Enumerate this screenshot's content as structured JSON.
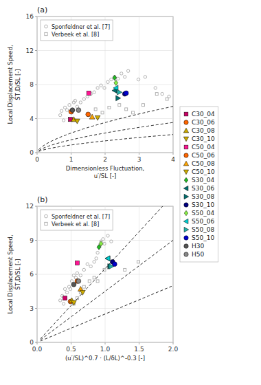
{
  "chart_data": [
    {
      "type": "scatter",
      "title": "(a)",
      "xlabel": [
        "Dimensionless Fluctuation,",
        "u′/SL [-]"
      ],
      "ylabel": [
        "Local Displacement Speed,",
        "S̄T,D/SL [-]"
      ],
      "xlim": [
        0,
        4
      ],
      "ylim": [
        0,
        16
      ],
      "xticks": [
        0,
        1,
        2,
        3,
        4
      ],
      "yticks": [
        0,
        4,
        8,
        12,
        16
      ],
      "grid": true,
      "legend": "upper left",
      "series": [
        {
          "name": "Sponfeldner et al.  [7]",
          "color": "#aaaaaa",
          "marker": "open-circle",
          "x": [
            0.68,
            0.72,
            0.78,
            0.82,
            0.88,
            0.95,
            1.02,
            1.08,
            1.12,
            1.18,
            1.28,
            1.38,
            1.48,
            1.58,
            1.68,
            1.78,
            1.88,
            1.98,
            2.08,
            2.18,
            2.28,
            2.38,
            2.48,
            2.58,
            2.68,
            2.98,
            3.18,
            3.48,
            3.68,
            3.88
          ],
          "values": [
            4.4,
            4.9,
            3.8,
            5.3,
            5.0,
            5.6,
            4.7,
            5.9,
            6.1,
            5.4,
            5.9,
            6.3,
            6.6,
            6.9,
            7.1,
            7.6,
            7.9,
            7.6,
            8.3,
            8.6,
            8.9,
            8.7,
            9.3,
            8.9,
            9.6,
            8.6,
            8.9,
            7.6,
            6.9,
            6.6
          ]
        },
        {
          "name": "Verbeek et al.  [8]",
          "color": "#aaaaaa",
          "marker": "open-square",
          "x": [
            1.52,
            1.72,
            1.92,
            2.12,
            2.42,
            2.62,
            2.82,
            3.12,
            3.52,
            3.82
          ],
          "values": [
            4.4,
            5.1,
            4.7,
            5.3,
            5.6,
            5.1,
            4.7,
            5.6,
            6.9,
            6.3
          ]
        },
        {
          "type": "line",
          "line_style": "dashed",
          "color": "#000000",
          "coefficient": 2.3,
          "exponent": 0.62,
          "x_range": [
            0.05,
            4.0
          ]
        },
        {
          "type": "line",
          "line_style": "dashed",
          "color": "#000000",
          "coefficient": 1.5,
          "exponent": 0.62,
          "x_range": [
            0.05,
            4.0
          ]
        },
        {
          "type": "line",
          "line_style": "dashed",
          "color": "#000000",
          "coefficient": 0.9,
          "exponent": 0.62,
          "x_range": [
            0.05,
            4.0
          ]
        },
        {
          "name": "C30_04",
          "color": "#CC0066",
          "marker": "square",
          "x": [
            0.98
          ],
          "values": [
            3.9
          ]
        },
        {
          "name": "C30_06",
          "color": "#FF6600",
          "marker": "circle",
          "x": [
            1.0
          ],
          "values": [
            4.8
          ]
        },
        {
          "name": "C30_08",
          "color": "#CCAA00",
          "marker": "triangle-up",
          "x": [
            1.08
          ],
          "values": [
            3.9
          ]
        },
        {
          "name": "C30_10",
          "color": "#CCAA00",
          "marker": "triangle-down",
          "x": [
            1.18
          ],
          "values": [
            3.7
          ]
        },
        {
          "name": "C50_04",
          "color": "#FF1493",
          "marker": "square",
          "x": [
            1.52
          ],
          "values": [
            7.0
          ]
        },
        {
          "name": "C50_06",
          "color": "#FF6600",
          "marker": "circle",
          "x": [
            1.5
          ],
          "values": [
            4.5
          ]
        },
        {
          "name": "C50_08",
          "color": "#FFA500",
          "marker": "triangle-up",
          "x": [
            1.62
          ],
          "values": [
            4.2
          ]
        },
        {
          "name": "C50_10",
          "color": "#CCAA00",
          "marker": "triangle-down",
          "x": [
            1.78
          ],
          "values": [
            4.1
          ]
        },
        {
          "name": "S30_04",
          "color": "#22BB22",
          "marker": "diamond",
          "x": [
            2.28
          ],
          "values": [
            8.8
          ]
        },
        {
          "name": "S30_06",
          "color": "#007070",
          "marker": "triangle-left",
          "x": [
            2.28
          ],
          "values": [
            7.3
          ]
        },
        {
          "name": "S30_08",
          "color": "#007070",
          "marker": "triangle-right",
          "x": [
            2.38
          ],
          "values": [
            6.4
          ]
        },
        {
          "name": "S30_10",
          "color": "#000080",
          "marker": "circle",
          "x": [
            2.58
          ],
          "values": [
            6.9
          ]
        },
        {
          "name": "S50_04",
          "color": "#88EE44",
          "marker": "diamond",
          "x": [
            2.32
          ],
          "values": [
            8.2
          ]
        },
        {
          "name": "S50_06",
          "color": "#00CED1",
          "marker": "triangle-left",
          "x": [
            2.32
          ],
          "values": [
            7.6
          ]
        },
        {
          "name": "S50_08",
          "color": "#20B2AA",
          "marker": "triangle-right",
          "x": [
            2.42
          ],
          "values": [
            7.1
          ]
        },
        {
          "name": "S50_10",
          "color": "#0000CD",
          "marker": "circle",
          "x": [
            2.62
          ],
          "values": [
            7.0
          ]
        },
        {
          "name": "H30",
          "color": "#555555",
          "marker": "circle",
          "x": [
            1.04
          ],
          "values": [
            5.0
          ]
        },
        {
          "name": "H50",
          "color": "#888888",
          "marker": "circle",
          "x": [
            1.22
          ],
          "values": [
            5.0
          ]
        }
      ]
    },
    {
      "type": "scatter",
      "title": "(b)",
      "xlabel": [
        "(u′/SL)^0.7 · (L/δL)^-0.3 [-]"
      ],
      "ylabel": [
        "Local Displacement Speed,",
        "S̄T,D/SL [-]"
      ],
      "xlim": [
        0.0,
        2.0
      ],
      "ylim": [
        0,
        12
      ],
      "xticks": [
        {
          "value": 0.0,
          "label": "0.0"
        },
        0.5,
        {
          "value": 1.0,
          "label": "1.0"
        },
        1.5,
        {
          "value": 2.0,
          "label": "2.0"
        }
      ],
      "yticks": [
        0,
        3,
        6,
        9,
        12
      ],
      "grid": true,
      "legend": "upper left",
      "series": [
        {
          "name": "Sponfeldner et al.  [7]",
          "color": "#aaaaaa",
          "marker": "open-circle",
          "x": [
            0.34,
            0.37,
            0.39,
            0.41,
            0.44,
            0.47,
            0.49,
            0.51,
            0.54,
            0.57,
            0.59,
            0.64,
            0.69,
            0.74,
            0.79,
            0.84,
            0.87,
            0.89,
            0.91,
            0.94,
            0.97,
            0.99,
            1.04,
            1.09
          ],
          "values": [
            3.7,
            4.1,
            3.4,
            4.7,
            4.4,
            4.9,
            4.7,
            5.4,
            5.9,
            5.7,
            6.1,
            5.9,
            6.4,
            6.9,
            6.7,
            7.1,
            7.4,
            7.9,
            8.4,
            8.9,
            9.1,
            8.7,
            9.4,
            8.9
          ]
        },
        {
          "name": "Verbeek et al.  [8]",
          "color": "#aaaaaa",
          "marker": "open-square",
          "x": [
            0.54,
            0.59,
            0.64,
            0.69,
            0.77,
            0.84,
            0.89,
            0.99,
            1.29,
            1.49
          ],
          "values": [
            3.4,
            3.9,
            4.4,
            4.9,
            5.4,
            5.7,
            5.4,
            6.4,
            6.4,
            7.1
          ]
        },
        {
          "type": "line",
          "line_style": "dashed",
          "color": "#000000",
          "coefficient": 6.5,
          "x_range": [
            0.05,
            2.0
          ]
        },
        {
          "type": "line",
          "line_style": "dashed",
          "color": "#000000",
          "coefficient": 4.5,
          "x_range": [
            0.05,
            2.0
          ]
        },
        {
          "type": "line",
          "line_style": "dashed",
          "color": "#000000",
          "coefficient": 2.5,
          "x_range": [
            0.05,
            2.0
          ]
        },
        {
          "name": "C30_04",
          "color": "#CC0066",
          "marker": "square",
          "x": [
            0.41
          ],
          "values": [
            3.9
          ]
        },
        {
          "name": "C30_06",
          "color": "#FF6600",
          "marker": "circle",
          "x": [
            0.49
          ],
          "values": [
            3.6
          ]
        },
        {
          "name": "C30_08",
          "color": "#CCAA00",
          "marker": "triangle-up",
          "x": [
            0.51
          ],
          "values": [
            3.7
          ]
        },
        {
          "name": "C30_10",
          "color": "#CCAA00",
          "marker": "triangle-down",
          "x": [
            0.54
          ],
          "values": [
            3.5
          ]
        },
        {
          "name": "C50_04",
          "color": "#FF1493",
          "marker": "square",
          "x": [
            0.59
          ],
          "values": [
            7.0
          ]
        },
        {
          "name": "C50_06",
          "color": "#FF6600",
          "marker": "circle",
          "x": [
            0.59
          ],
          "values": [
            5.4
          ]
        },
        {
          "name": "C50_08",
          "color": "#FFA500",
          "marker": "triangle-up",
          "x": [
            0.64
          ],
          "values": [
            4.7
          ]
        },
        {
          "name": "C50_10",
          "color": "#CCAA00",
          "marker": "triangle-down",
          "x": [
            0.67
          ],
          "values": [
            4.4
          ]
        },
        {
          "name": "S30_04",
          "color": "#22BB22",
          "marker": "diamond",
          "x": [
            0.91
          ],
          "values": [
            8.4
          ]
        },
        {
          "name": "S30_06",
          "color": "#007070",
          "marker": "triangle-left",
          "x": [
            1.04
          ],
          "values": [
            7.4
          ]
        },
        {
          "name": "S30_08",
          "color": "#007070",
          "marker": "triangle-right",
          "x": [
            1.07
          ],
          "values": [
            6.7
          ]
        },
        {
          "name": "S30_10",
          "color": "#000080",
          "marker": "circle",
          "x": [
            1.11
          ],
          "values": [
            7.1
          ]
        },
        {
          "name": "S50_04",
          "color": "#88EE44",
          "marker": "diamond",
          "x": [
            0.94
          ],
          "values": [
            8.7
          ]
        },
        {
          "name": "S50_06",
          "color": "#00CED1",
          "marker": "triangle-left",
          "x": [
            1.04
          ],
          "values": [
            7.4
          ]
        },
        {
          "name": "S50_08",
          "color": "#20B2AA",
          "marker": "triangle-right",
          "x": [
            1.09
          ],
          "values": [
            6.7
          ]
        },
        {
          "name": "S50_10",
          "color": "#0000CD",
          "marker": "circle",
          "x": [
            1.14
          ],
          "values": [
            6.9
          ]
        },
        {
          "name": "H30",
          "color": "#555555",
          "marker": "circle",
          "x": [
            0.54
          ],
          "values": [
            5.1
          ]
        },
        {
          "name": "H50",
          "color": "#888888",
          "marker": "circle",
          "x": [
            0.61
          ],
          "values": [
            5.4
          ]
        }
      ]
    }
  ]
}
